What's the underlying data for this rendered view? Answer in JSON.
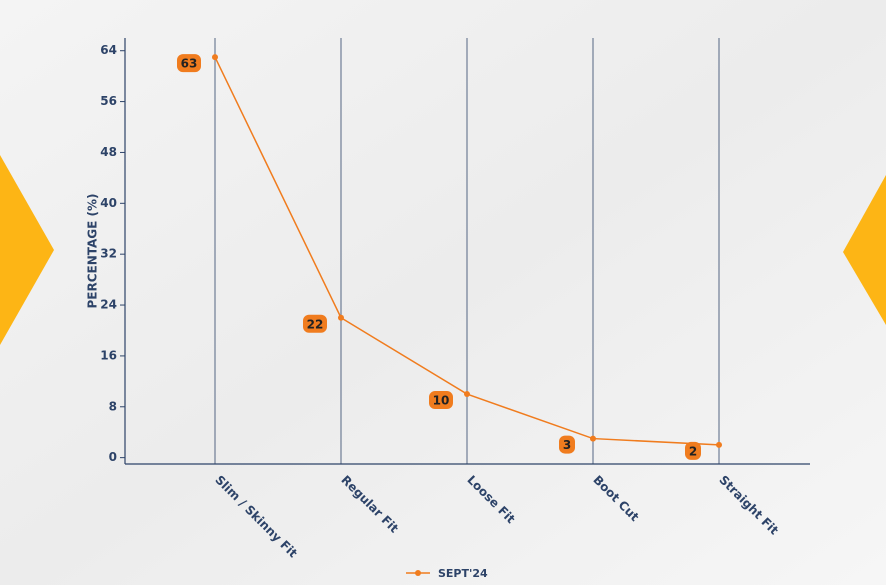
{
  "chart_data": {
    "type": "line",
    "y_label": "PERCENTAGE (%)",
    "categories": [
      "Slim / Skinny Fit",
      "Regular Fit",
      "Loose Fit",
      "Boot Cut",
      "Straight Fit"
    ],
    "series": [
      {
        "name": "SEPT'24",
        "color": "#f07c1e",
        "values": [
          63,
          22,
          10,
          3,
          2
        ]
      }
    ],
    "ylim": [
      -1,
      66
    ],
    "yticks": [
      0,
      8,
      16,
      24,
      32,
      40,
      48,
      56,
      64
    ],
    "grid": "x",
    "legend": "bottom"
  }
}
